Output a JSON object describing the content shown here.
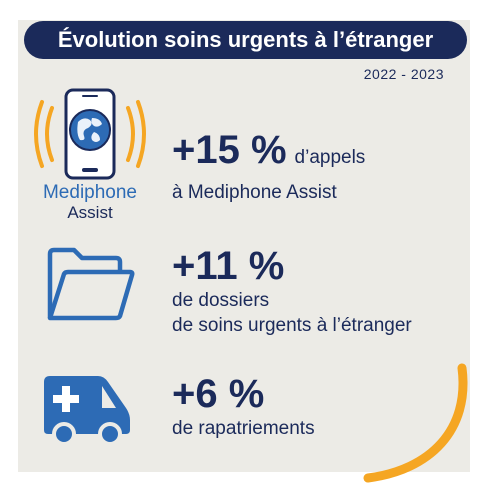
{
  "header": {
    "title": "Évolution soins urgents à l’étranger",
    "period": "2022 - 2023"
  },
  "brand": {
    "line1": "Mediphone",
    "line2": "Assist"
  },
  "stats": [
    {
      "value": "+15 %",
      "label_inline": "d’appels",
      "label_line2": "à Mediphone Assist",
      "icon": "phone-globe-icon"
    },
    {
      "value": "+11 %",
      "label_line1": "de dossiers",
      "label_line2": "de soins urgents à l’étranger",
      "icon": "folder-icon"
    },
    {
      "value": "+6 %",
      "label_line1": "de rapatriements",
      "icon": "ambulance-icon"
    }
  ],
  "colors": {
    "navy": "#1b2a5a",
    "blue": "#2d6bb5",
    "accent": "#f5a623",
    "panel": "#ecebe6"
  }
}
